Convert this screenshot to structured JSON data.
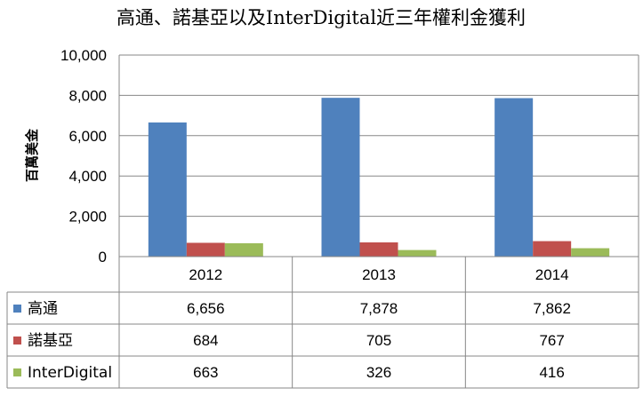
{
  "chart_data": {
    "type": "bar",
    "title": "高通、諾基亞以及InterDigital近三年權利金獲利",
    "ylabel": "百萬美金",
    "xlabel": "",
    "categories": [
      "2012",
      "2013",
      "2014"
    ],
    "ylim": [
      0,
      10000
    ],
    "yticks": [
      0,
      2000,
      4000,
      6000,
      8000,
      10000
    ],
    "ytick_labels": [
      "0",
      "2,000",
      "4,000",
      "6,000",
      "8,000",
      "10,000"
    ],
    "grid": true,
    "legend": "data-table",
    "series": [
      {
        "name": "高通",
        "color": "#4F81BD",
        "values": [
          6656,
          7878,
          7862
        ],
        "labels": [
          "6,656",
          "7,878",
          "7,862"
        ]
      },
      {
        "name": "諾基亞",
        "color": "#C0504D",
        "values": [
          684,
          705,
          767
        ],
        "labels": [
          "684",
          "705",
          "767"
        ]
      },
      {
        "name": "InterDigital",
        "color": "#9BBB59",
        "values": [
          663,
          326,
          416
        ],
        "labels": [
          "663",
          "326",
          "416"
        ]
      }
    ]
  }
}
